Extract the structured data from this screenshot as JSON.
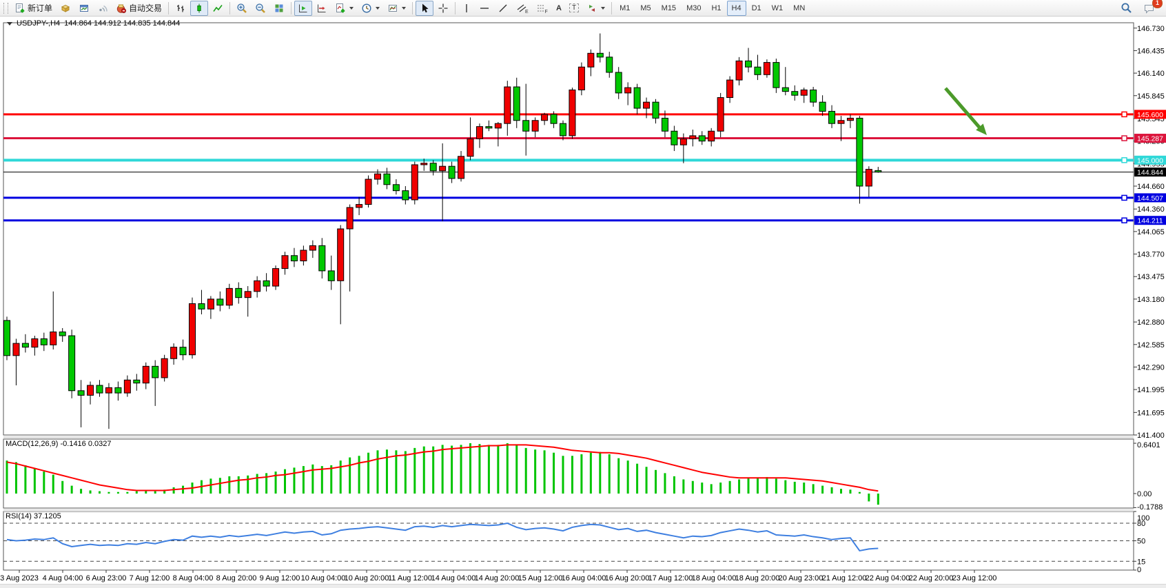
{
  "toolbar": {
    "new_order_label": "新订单",
    "auto_trading_label": "自动交易",
    "icons": [
      "new-order",
      "market-watch",
      "data-window",
      "signal",
      "auto-trading",
      "bar-chart",
      "candle-chart",
      "line-chart",
      "zoom-in",
      "zoom-out",
      "tile-windows",
      "auto-scroll",
      "chart-shift",
      "indicators",
      "periods",
      "templates",
      "cursor",
      "crosshair",
      "vertical-line",
      "horizontal-line",
      "trendline",
      "equidistant-channel",
      "fibonacci",
      "text",
      "text-label",
      "shapes",
      "search",
      "chat"
    ],
    "glyphs": {
      "channel": "E",
      "fibonacci": "F",
      "text": "A",
      "label": "T"
    },
    "timeframes": [
      "M1",
      "M5",
      "M15",
      "M30",
      "H1",
      "H4",
      "D1",
      "W1",
      "MN"
    ],
    "active_timeframe": "H4",
    "notification_count": "1"
  },
  "chart": {
    "symbol_period": "USDJPY-,H4",
    "ohlc_display": "144.864 144.912 144.835 144.844",
    "open": "144.864",
    "high": "144.912",
    "low": "144.835",
    "close": "144.844"
  },
  "chart_data": {
    "type": "candlestick",
    "symbol": "USDJPY",
    "period": "H4",
    "bull_color": "#f00000",
    "bear_color": "#00c800",
    "wick_color": "#000000",
    "price_axis": {
      "min": 141.4,
      "max": 146.8,
      "ticks": [
        "146.730",
        "146.435",
        "146.140",
        "145.845",
        "145.545",
        "145.250",
        "144.955",
        "144.660",
        "144.360",
        "144.065",
        "143.770",
        "143.475",
        "143.180",
        "142.880",
        "142.585",
        "142.290",
        "141.995",
        "141.695",
        "141.400"
      ]
    },
    "time_labels": [
      "3 Aug 2023",
      "4 Aug 04:00",
      "6 Aug 23:00",
      "7 Aug 12:00",
      "8 Aug 04:00",
      "8 Aug 20:00",
      "9 Aug 12:00",
      "10 Aug 04:00",
      "10 Aug 20:00",
      "11 Aug 12:00",
      "14 Aug 04:00",
      "14 Aug 20:00",
      "15 Aug 12:00",
      "16 Aug 04:00",
      "16 Aug 20:00",
      "17 Aug 12:00",
      "18 Aug 04:00",
      "18 Aug 20:00",
      "20 Aug 23:00",
      "21 Aug 12:00",
      "22 Aug 04:00",
      "22 Aug 20:00",
      "23 Aug 12:00"
    ],
    "hlines": [
      {
        "price": 145.6,
        "label": "145.600",
        "color": "#ff0000",
        "width": 3
      },
      {
        "price": 145.287,
        "label": "145.287",
        "color": "#dc143c",
        "width": 3
      },
      {
        "price": 145.0,
        "label": "145.000",
        "color": "#2fd8d8",
        "width": 4
      },
      {
        "price": 144.844,
        "label": "144.844",
        "color": "#000000",
        "width": 1
      },
      {
        "price": 144.507,
        "label": "144.507",
        "color": "#0000e0",
        "width": 3
      },
      {
        "price": 144.211,
        "label": "144.211",
        "color": "#0000e0",
        "width": 3
      }
    ],
    "trend_arrow": {
      "from": [
        1372,
        128
      ],
      "to": [
        1424,
        188
      ],
      "tip": [
        1432,
        196
      ],
      "color": "#4c9a2a"
    },
    "candles": [
      [
        142.9,
        142.95,
        142.38,
        142.44
      ],
      [
        142.44,
        142.66,
        142.05,
        142.6
      ],
      [
        142.6,
        142.72,
        142.48,
        142.55
      ],
      [
        142.55,
        142.7,
        142.44,
        142.66
      ],
      [
        142.66,
        142.74,
        142.5,
        142.58
      ],
      [
        142.58,
        143.28,
        142.52,
        142.75
      ],
      [
        142.75,
        142.8,
        142.62,
        142.7
      ],
      [
        142.7,
        142.78,
        141.88,
        141.98
      ],
      [
        141.98,
        142.12,
        141.5,
        141.92
      ],
      [
        141.92,
        142.1,
        141.8,
        142.05
      ],
      [
        142.05,
        142.12,
        141.9,
        141.95
      ],
      [
        141.95,
        142.08,
        141.48,
        142.02
      ],
      [
        142.02,
        142.1,
        141.85,
        141.95
      ],
      [
        141.95,
        142.18,
        141.9,
        142.12
      ],
      [
        142.12,
        142.2,
        141.98,
        142.08
      ],
      [
        142.08,
        142.35,
        142.0,
        142.3
      ],
      [
        142.3,
        142.38,
        141.78,
        142.15
      ],
      [
        142.15,
        142.45,
        142.1,
        142.4
      ],
      [
        142.4,
        142.6,
        142.32,
        142.55
      ],
      [
        142.55,
        142.65,
        142.38,
        142.45
      ],
      [
        142.45,
        143.2,
        142.4,
        143.12
      ],
      [
        143.12,
        143.3,
        142.98,
        143.05
      ],
      [
        143.05,
        143.22,
        142.92,
        143.18
      ],
      [
        143.18,
        143.28,
        143.02,
        143.1
      ],
      [
        143.1,
        143.38,
        143.05,
        143.32
      ],
      [
        143.32,
        143.4,
        143.12,
        143.2
      ],
      [
        143.2,
        143.35,
        142.95,
        143.28
      ],
      [
        143.28,
        143.48,
        143.2,
        143.42
      ],
      [
        143.42,
        143.52,
        143.28,
        143.35
      ],
      [
        143.35,
        143.62,
        143.3,
        143.58
      ],
      [
        143.58,
        143.8,
        143.5,
        143.75
      ],
      [
        143.75,
        143.85,
        143.6,
        143.68
      ],
      [
        143.68,
        143.88,
        143.62,
        143.82
      ],
      [
        143.82,
        143.95,
        143.72,
        143.88
      ],
      [
        143.88,
        143.98,
        143.45,
        143.55
      ],
      [
        143.55,
        143.75,
        143.3,
        143.42
      ],
      [
        143.42,
        144.15,
        142.85,
        144.1
      ],
      [
        144.1,
        144.42,
        143.28,
        144.38
      ],
      [
        144.38,
        144.52,
        144.28,
        144.42
      ],
      [
        144.42,
        144.8,
        144.38,
        144.75
      ],
      [
        144.75,
        144.88,
        144.68,
        144.82
      ],
      [
        144.82,
        144.9,
        144.62,
        144.68
      ],
      [
        144.68,
        144.75,
        144.55,
        144.6
      ],
      [
        144.6,
        144.66,
        144.42,
        144.48
      ],
      [
        144.48,
        144.98,
        144.42,
        144.94
      ],
      [
        144.94,
        145.02,
        144.86,
        144.96
      ],
      [
        144.96,
        145.0,
        144.8,
        144.86
      ],
      [
        144.86,
        145.22,
        144.2,
        144.92
      ],
      [
        144.92,
        144.98,
        144.7,
        144.76
      ],
      [
        144.76,
        145.12,
        144.72,
        145.05
      ],
      [
        145.05,
        145.56,
        145.0,
        145.28
      ],
      [
        145.28,
        145.48,
        145.16,
        145.44
      ],
      [
        145.44,
        145.52,
        145.38,
        145.42
      ],
      [
        145.42,
        145.5,
        145.18,
        145.48
      ],
      [
        145.48,
        146.04,
        145.32,
        145.96
      ],
      [
        145.96,
        146.08,
        145.42,
        145.52
      ],
      [
        145.52,
        146.0,
        145.06,
        145.38
      ],
      [
        145.38,
        145.56,
        145.3,
        145.52
      ],
      [
        145.52,
        145.62,
        145.46,
        145.6
      ],
      [
        145.6,
        145.64,
        145.42,
        145.48
      ],
      [
        145.48,
        145.52,
        145.26,
        145.32
      ],
      [
        145.32,
        145.95,
        145.28,
        145.92
      ],
      [
        145.92,
        146.28,
        145.85,
        146.22
      ],
      [
        146.22,
        146.45,
        146.1,
        146.4
      ],
      [
        146.4,
        146.66,
        146.28,
        146.35
      ],
      [
        146.35,
        146.42,
        146.08,
        146.15
      ],
      [
        146.15,
        146.22,
        145.8,
        145.88
      ],
      [
        145.88,
        146.02,
        145.72,
        145.95
      ],
      [
        145.95,
        146.0,
        145.6,
        145.68
      ],
      [
        145.68,
        145.82,
        145.55,
        145.76
      ],
      [
        145.76,
        145.8,
        145.48,
        145.55
      ],
      [
        145.55,
        145.65,
        145.3,
        145.38
      ],
      [
        145.38,
        145.45,
        145.12,
        145.2
      ],
      [
        145.2,
        145.35,
        144.96,
        145.28
      ],
      [
        145.28,
        145.4,
        145.18,
        145.32
      ],
      [
        145.32,
        145.38,
        145.2,
        145.25
      ],
      [
        145.25,
        145.42,
        145.18,
        145.38
      ],
      [
        145.38,
        145.88,
        145.3,
        145.82
      ],
      [
        145.82,
        146.1,
        145.75,
        146.05
      ],
      [
        146.05,
        146.35,
        145.98,
        146.3
      ],
      [
        146.3,
        146.47,
        146.15,
        146.22
      ],
      [
        146.22,
        146.38,
        146.05,
        146.12
      ],
      [
        146.12,
        146.32,
        146.08,
        146.28
      ],
      [
        146.28,
        146.33,
        145.88,
        145.95
      ],
      [
        145.95,
        146.22,
        145.85,
        145.9
      ],
      [
        145.9,
        145.98,
        145.78,
        145.85
      ],
      [
        145.85,
        145.95,
        145.75,
        145.92
      ],
      [
        145.92,
        145.96,
        145.7,
        145.76
      ],
      [
        145.76,
        145.85,
        145.58,
        145.64
      ],
      [
        145.64,
        145.72,
        145.42,
        145.48
      ],
      [
        145.48,
        145.58,
        145.25,
        145.52
      ],
      [
        145.52,
        145.6,
        145.42,
        145.55
      ],
      [
        145.55,
        145.58,
        144.43,
        144.66
      ],
      [
        144.66,
        144.92,
        144.52,
        144.88
      ],
      [
        144.864,
        144.912,
        144.835,
        144.844
      ]
    ],
    "macd": {
      "label": "MACD(12,26,9)",
      "main_value": "-0.1416",
      "signal_value": "0.0327",
      "axis_labels": [
        "0.6401",
        "0.00",
        "-0.1788"
      ],
      "axis_values": [
        0.6401,
        0.0,
        -0.1788
      ],
      "histogram_color": "#00c400",
      "signal_color": "#ff0000",
      "histogram": [
        0.42,
        0.4,
        0.36,
        0.32,
        0.28,
        0.24,
        0.16,
        0.1,
        0.06,
        0.04,
        0.03,
        0.02,
        0.02,
        0.02,
        0.03,
        0.04,
        0.03,
        0.05,
        0.08,
        0.1,
        0.14,
        0.17,
        0.19,
        0.2,
        0.22,
        0.22,
        0.23,
        0.25,
        0.26,
        0.28,
        0.31,
        0.33,
        0.35,
        0.37,
        0.35,
        0.36,
        0.42,
        0.46,
        0.48,
        0.52,
        0.55,
        0.56,
        0.55,
        0.54,
        0.58,
        0.6,
        0.6,
        0.62,
        0.61,
        0.62,
        0.64,
        0.63,
        0.62,
        0.62,
        0.64,
        0.62,
        0.58,
        0.56,
        0.55,
        0.52,
        0.48,
        0.48,
        0.5,
        0.52,
        0.53,
        0.5,
        0.45,
        0.42,
        0.38,
        0.34,
        0.3,
        0.26,
        0.22,
        0.18,
        0.16,
        0.14,
        0.12,
        0.14,
        0.16,
        0.18,
        0.2,
        0.2,
        0.21,
        0.19,
        0.17,
        0.15,
        0.14,
        0.12,
        0.1,
        0.08,
        0.06,
        0.05,
        0.02,
        -0.1,
        -0.1416
      ],
      "signal": [
        0.4,
        0.38,
        0.35,
        0.32,
        0.29,
        0.26,
        0.23,
        0.2,
        0.17,
        0.14,
        0.11,
        0.09,
        0.07,
        0.05,
        0.04,
        0.04,
        0.04,
        0.04,
        0.05,
        0.06,
        0.07,
        0.09,
        0.11,
        0.13,
        0.15,
        0.17,
        0.18,
        0.2,
        0.21,
        0.23,
        0.24,
        0.26,
        0.28,
        0.3,
        0.31,
        0.32,
        0.34,
        0.36,
        0.39,
        0.41,
        0.44,
        0.46,
        0.48,
        0.49,
        0.51,
        0.53,
        0.54,
        0.56,
        0.57,
        0.58,
        0.59,
        0.6,
        0.61,
        0.61,
        0.62,
        0.62,
        0.62,
        0.61,
        0.6,
        0.59,
        0.57,
        0.55,
        0.54,
        0.53,
        0.52,
        0.52,
        0.51,
        0.49,
        0.47,
        0.45,
        0.42,
        0.39,
        0.36,
        0.33,
        0.3,
        0.27,
        0.25,
        0.23,
        0.21,
        0.2,
        0.2,
        0.2,
        0.2,
        0.2,
        0.2,
        0.19,
        0.18,
        0.17,
        0.16,
        0.14,
        0.12,
        0.1,
        0.08,
        0.05,
        0.0327
      ]
    },
    "rsi": {
      "label": "RSI(14)",
      "value": "37.1205",
      "line_color": "#3e7fe0",
      "levels": [
        80,
        50,
        15
      ],
      "axis_labels": [
        "100",
        "80",
        "50",
        "15",
        "0"
      ],
      "axis_values": [
        100,
        80,
        50,
        15,
        0
      ],
      "values": [
        52,
        50,
        51,
        53,
        52,
        55,
        45,
        40,
        42,
        44,
        42,
        43,
        42,
        45,
        44,
        47,
        45,
        49,
        52,
        51,
        58,
        56,
        58,
        56,
        59,
        57,
        59,
        61,
        59,
        62,
        65,
        63,
        65,
        66,
        60,
        62,
        68,
        70,
        71,
        73,
        74,
        72,
        70,
        68,
        74,
        75,
        73,
        76,
        74,
        76,
        78,
        77,
        76,
        77,
        80,
        73,
        69,
        71,
        72,
        70,
        67,
        73,
        76,
        78,
        77,
        73,
        69,
        71,
        66,
        68,
        64,
        61,
        58,
        55,
        58,
        57,
        59,
        64,
        67,
        70,
        68,
        65,
        67,
        60,
        59,
        58,
        60,
        57,
        55,
        52,
        54,
        55,
        33,
        36,
        37.12
      ]
    }
  }
}
